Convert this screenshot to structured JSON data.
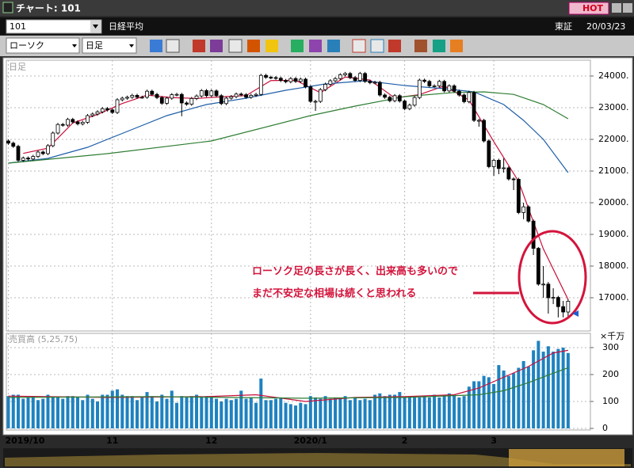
{
  "window": {
    "title": "チャート: 101",
    "hot": "HOT",
    "code": "101",
    "name": "日経平均",
    "market": "東証",
    "date": "20/03/23",
    "chart_kind": "ローソク",
    "period": "日足"
  },
  "chart_data": {
    "type": "candlestick",
    "panel_label": "日足",
    "xlim": [
      -0.4,
      117.5
    ],
    "xticks": [
      {
        "value": 0,
        "label": "2019/10"
      },
      {
        "value": 21,
        "label": "11"
      },
      {
        "value": 41,
        "label": "12"
      },
      {
        "value": 61,
        "label": "2020/1"
      },
      {
        "value": 80,
        "label": "2"
      },
      {
        "value": 98,
        "label": "3"
      }
    ],
    "ylim": [
      15950,
      24500
    ],
    "yticks": [
      {
        "value": 17000,
        "label": "17000."
      },
      {
        "value": 18000,
        "label": "18000."
      },
      {
        "value": 19000,
        "label": "19000."
      },
      {
        "value": 20000,
        "label": "20000."
      },
      {
        "value": 21000,
        "label": "21000."
      },
      {
        "value": 22000,
        "label": "22000."
      },
      {
        "value": 23000,
        "label": "23000."
      },
      {
        "value": 24000,
        "label": "24000."
      }
    ],
    "grid": true,
    "candles": {
      "color_up": "#ffffff",
      "color_down": "#000000",
      "values": [
        [
          21950,
          22000,
          21830,
          21880
        ],
        [
          21880,
          21930,
          21730,
          21780
        ],
        [
          21780,
          21830,
          21290,
          21340
        ],
        [
          21340,
          21460,
          21290,
          21410
        ],
        [
          21410,
          21460,
          21330,
          21380
        ],
        [
          21380,
          21510,
          21330,
          21460
        ],
        [
          21460,
          21650,
          21410,
          21600
        ],
        [
          21600,
          21650,
          21500,
          21550
        ],
        [
          21550,
          21850,
          21500,
          21800
        ],
        [
          21800,
          22250,
          21750,
          22200
        ],
        [
          22200,
          22520,
          22150,
          22470
        ],
        [
          22470,
          22520,
          22400,
          22450
        ],
        [
          22450,
          22680,
          22400,
          22630
        ],
        [
          22630,
          22680,
          22500,
          22550
        ],
        [
          22550,
          22600,
          22440,
          22490
        ],
        [
          22490,
          22590,
          22440,
          22540
        ],
        [
          22540,
          22800,
          22490,
          22750
        ],
        [
          22750,
          22850,
          22700,
          22800
        ],
        [
          22800,
          22920,
          22750,
          22870
        ],
        [
          22870,
          23020,
          22820,
          22970
        ],
        [
          22970,
          23020,
          22880,
          22930
        ],
        [
          22930,
          22980,
          22800,
          22850
        ],
        [
          22850,
          23300,
          22800,
          23250
        ],
        [
          23250,
          23350,
          23200,
          23300
        ],
        [
          23300,
          23380,
          23250,
          23330
        ],
        [
          23330,
          23440,
          23280,
          23390
        ],
        [
          23390,
          23440,
          23280,
          23330
        ],
        [
          23330,
          23380,
          23280,
          23330
        ],
        [
          23330,
          23570,
          23280,
          23520
        ],
        [
          23520,
          23570,
          23370,
          23420
        ],
        [
          23420,
          23470,
          23270,
          23320
        ],
        [
          23320,
          23370,
          23090,
          23140
        ],
        [
          23140,
          23350,
          23090,
          23300
        ],
        [
          23300,
          23460,
          23250,
          23410
        ],
        [
          23410,
          23470,
          23360,
          23420
        ],
        [
          23420,
          23470,
          22730,
          23150
        ],
        [
          23150,
          23200,
          23060,
          23110
        ],
        [
          23110,
          23340,
          23060,
          23290
        ],
        [
          23290,
          23420,
          23240,
          23370
        ],
        [
          23370,
          23590,
          23320,
          23540
        ],
        [
          23540,
          23590,
          23330,
          23380
        ],
        [
          23380,
          23580,
          23330,
          23530
        ],
        [
          23530,
          23580,
          23330,
          23380
        ],
        [
          23380,
          23430,
          23080,
          23130
        ],
        [
          23130,
          23350,
          23080,
          23300
        ],
        [
          23300,
          23400,
          23250,
          23350
        ],
        [
          23350,
          23480,
          23300,
          23430
        ],
        [
          23430,
          23480,
          23360,
          23410
        ],
        [
          23410,
          23460,
          23280,
          23330
        ],
        [
          23330,
          23440,
          23280,
          23390
        ],
        [
          23390,
          23470,
          23340,
          23420
        ],
        [
          23420,
          24070,
          23370,
          24020
        ],
        [
          24020,
          24070,
          23910,
          23960
        ],
        [
          23960,
          24010,
          23900,
          23950
        ],
        [
          23950,
          24000,
          23880,
          23930
        ],
        [
          23930,
          23980,
          23810,
          23860
        ],
        [
          23860,
          23910,
          23770,
          23820
        ],
        [
          23820,
          23970,
          23770,
          23920
        ],
        [
          23920,
          23970,
          23780,
          23830
        ],
        [
          23830,
          23950,
          23780,
          23900
        ],
        [
          23900,
          23950,
          23610,
          23660
        ],
        [
          23660,
          23710,
          23150,
          23200
        ],
        [
          23200,
          23250,
          22900,
          23200
        ],
        [
          23200,
          23620,
          23150,
          23570
        ],
        [
          23570,
          23790,
          23520,
          23740
        ],
        [
          23740,
          23900,
          23690,
          23850
        ],
        [
          23850,
          23970,
          23800,
          23920
        ],
        [
          23920,
          24090,
          23870,
          24040
        ],
        [
          24040,
          24130,
          23990,
          24080
        ],
        [
          24080,
          24130,
          23900,
          23950
        ],
        [
          23950,
          24000,
          23810,
          23860
        ],
        [
          23860,
          24130,
          23810,
          24080
        ],
        [
          24080,
          24130,
          23780,
          23830
        ],
        [
          23830,
          23880,
          23740,
          23790
        ],
        [
          23790,
          23850,
          23740,
          23800
        ],
        [
          23800,
          23850,
          23350,
          23400
        ],
        [
          23400,
          23450,
          23280,
          23330
        ],
        [
          23330,
          23380,
          23170,
          23220
        ],
        [
          23220,
          23430,
          23170,
          23380
        ],
        [
          23380,
          23430,
          23160,
          23210
        ],
        [
          23210,
          23260,
          22920,
          22970
        ],
        [
          22970,
          23130,
          22920,
          23080
        ],
        [
          23080,
          23370,
          23030,
          23320
        ],
        [
          23320,
          23920,
          23270,
          23870
        ],
        [
          23870,
          23920,
          23780,
          23830
        ],
        [
          23830,
          23880,
          23640,
          23690
        ],
        [
          23690,
          23740,
          23640,
          23690
        ],
        [
          23690,
          23880,
          23640,
          23830
        ],
        [
          23830,
          23880,
          23480,
          23530
        ],
        [
          23530,
          23740,
          23480,
          23690
        ],
        [
          23690,
          23740,
          23470,
          23520
        ],
        [
          23520,
          23570,
          23350,
          23400
        ],
        [
          23400,
          23450,
          23140,
          23190
        ],
        [
          23190,
          23530,
          23140,
          23480
        ],
        [
          23480,
          23530,
          22550,
          22600
        ],
        [
          22600,
          22650,
          22400,
          22600
        ],
        [
          22600,
          22650,
          21900,
          21950
        ],
        [
          21950,
          22000,
          21090,
          21140
        ],
        [
          21140,
          21390,
          20850,
          21340
        ],
        [
          21340,
          21390,
          20900,
          21080
        ],
        [
          21080,
          21400,
          20950,
          21100
        ],
        [
          21100,
          21150,
          20700,
          20750
        ],
        [
          20750,
          20800,
          20400,
          20740
        ],
        [
          20740,
          20790,
          19640,
          19690
        ],
        [
          19690,
          20000,
          19480,
          19870
        ],
        [
          19870,
          19920,
          19370,
          19420
        ],
        [
          19420,
          19470,
          18350,
          18560
        ],
        [
          18560,
          18600,
          17380,
          17430
        ],
        [
          17430,
          18000,
          17000,
          17430
        ],
        [
          17430,
          17500,
          16500,
          17000
        ],
        [
          17000,
          17300,
          16800,
          17010
        ],
        [
          17010,
          17060,
          16380,
          16720
        ],
        [
          16720,
          16900,
          16380,
          16550
        ],
        [
          16550,
          16950,
          16360,
          16890
        ]
      ]
    },
    "lines": [
      {
        "color": "#c8103c",
        "x": [
          3,
          8,
          13,
          18,
          23,
          28,
          33,
          38,
          43,
          48,
          53,
          58,
          63,
          68,
          73,
          78,
          83,
          88,
          93,
          98,
          103,
          108,
          113
        ],
        "values": [
          21558,
          21722,
          22518,
          22786,
          23132,
          23398,
          23318,
          23292,
          23344,
          23382,
          23856,
          23866,
          23474,
          23968,
          23872,
          23308,
          23414,
          23686,
          23238,
          21926,
          20672,
          18542,
          16942
        ]
      },
      {
        "color": "#1f5fa8",
        "x": [
          0,
          8,
          16,
          24,
          32,
          40,
          48,
          56,
          64,
          72,
          80,
          88,
          94,
          100,
          104,
          108,
          113
        ],
        "values": [
          21250,
          21400,
          21750,
          22250,
          22750,
          23100,
          23300,
          23550,
          23750,
          23850,
          23700,
          23600,
          23500,
          23100,
          22600,
          22000,
          20950
        ]
      },
      {
        "color": "#2e7d32",
        "x": [
          0,
          20,
          41,
          61,
          70,
          80,
          90,
          96,
          102,
          108,
          113
        ],
        "values": [
          21250,
          21550,
          21950,
          22750,
          23050,
          23350,
          23480,
          23500,
          23420,
          23100,
          22650
        ]
      }
    ],
    "annotation": [
      "ローソク足の長さが長く、出来高も多いので",
      "まだ不安定な相場は続くと思われる"
    ],
    "volume": {
      "label": "売買高 (5,25,75)",
      "unit": "×千万",
      "ylim": [
        0,
        341
      ],
      "yticks": [
        0,
        100,
        200,
        300
      ],
      "color": "#1e82c0",
      "values": [
        120,
        125,
        125,
        110,
        115,
        120,
        105,
        110,
        125,
        115,
        115,
        110,
        120,
        120,
        115,
        105,
        125,
        110,
        100,
        125,
        125,
        140,
        145,
        125,
        120,
        120,
        105,
        115,
        135,
        120,
        100,
        125,
        110,
        140,
        95,
        120,
        115,
        120,
        125,
        115,
        120,
        115,
        110,
        100,
        110,
        105,
        110,
        140,
        110,
        115,
        95,
        185,
        105,
        105,
        110,
        115,
        95,
        90,
        85,
        95,
        90,
        120,
        115,
        110,
        120,
        110,
        115,
        110,
        120,
        105,
        115,
        105,
        110,
        105,
        125,
        130,
        120,
        125,
        125,
        135,
        115,
        115,
        120,
        115,
        120,
        115,
        125,
        115,
        120,
        130,
        125,
        115,
        120,
        155,
        175,
        175,
        195,
        190,
        165,
        235,
        215,
        195,
        205,
        225,
        250,
        230,
        290,
        325,
        285,
        305,
        285,
        295,
        300,
        280
      ],
      "lines": [
        {
          "color": "#c8103c",
          "x": [
            0,
            20,
            40,
            50,
            60,
            70,
            80,
            90,
            95,
            100,
            105,
            110,
            113
          ],
          "values": [
            120,
            115,
            118,
            125,
            100,
            115,
            118,
            125,
            150,
            190,
            230,
            280,
            290
          ]
        },
        {
          "color": "#2e7d32",
          "x": [
            0,
            30,
            60,
            80,
            95,
            100,
            105,
            110,
            113
          ],
          "values": [
            115,
            118,
            112,
            115,
            125,
            140,
            170,
            205,
            225
          ]
        }
      ]
    }
  }
}
